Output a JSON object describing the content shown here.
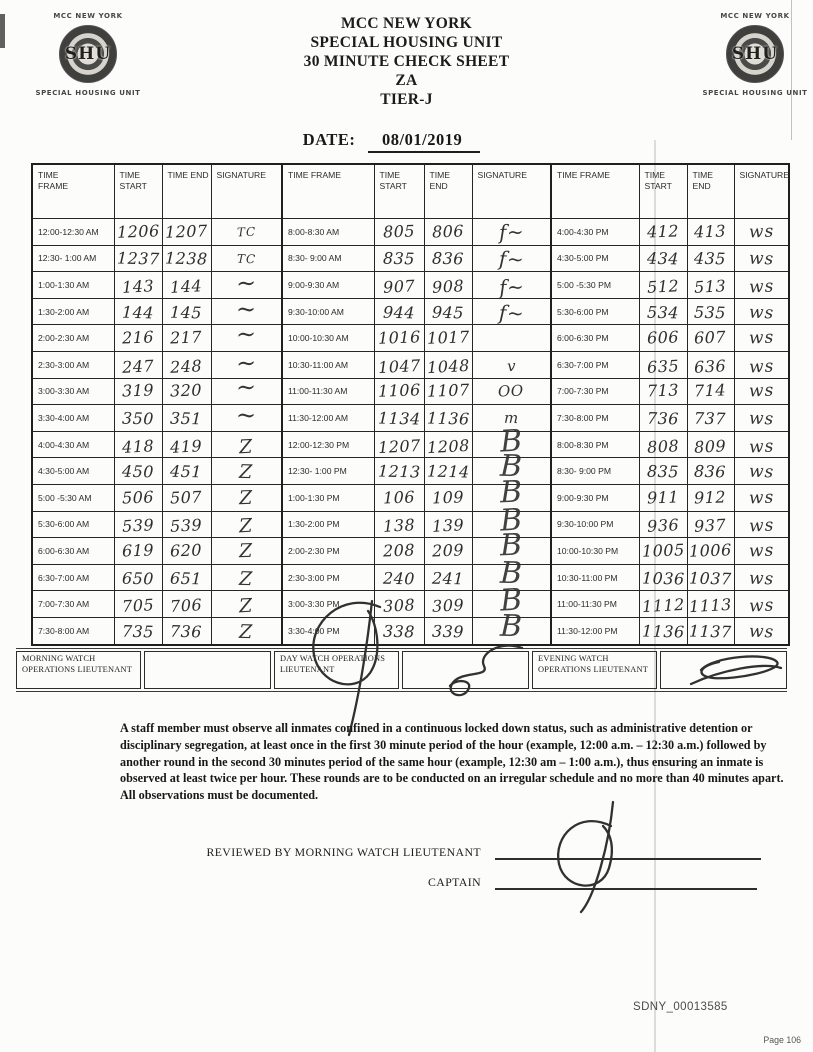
{
  "colors": {
    "paper": "#fcfcfa",
    "print_ink": "#1c1c1c",
    "pen_ink": "#2e2e2e",
    "fold_line": "#b9b6ae"
  },
  "document": {
    "logo": {
      "top": "MCC NEW YORK",
      "seal": "SHU",
      "bottom": "SPECIAL HOUSING UNIT"
    },
    "title_lines": [
      "MCC NEW YORK",
      "SPECIAL HOUSING UNIT",
      "30 MINUTE CHECK SHEET",
      "ZA",
      "TIER-J"
    ],
    "date_label": "DATE:",
    "date_value": "08/01/2019"
  },
  "table": {
    "headers": [
      "TIME FRAME",
      "TIME START",
      "TIME END",
      "SIGNATURE"
    ],
    "groups": [
      {
        "rows": [
          {
            "frame": "12:00-12:30 AM",
            "start": "1206",
            "end": "1207",
            "sig": "TC"
          },
          {
            "frame": "12:30- 1:00 AM",
            "start": "1237",
            "end": "1238",
            "sig": "TC"
          },
          {
            "frame": "1:00-1:30 AM",
            "start": "143",
            "end": "144",
            "sig": "~"
          },
          {
            "frame": "1:30-2:00 AM",
            "start": "144",
            "end": "145",
            "sig": "~"
          },
          {
            "frame": "2:00-2:30 AM",
            "start": "216",
            "end": "217",
            "sig": "~"
          },
          {
            "frame": "2:30-3:00 AM",
            "start": "247",
            "end": "248",
            "sig": "~"
          },
          {
            "frame": "3:00-3:30 AM",
            "start": "319",
            "end": "320",
            "sig": "~"
          },
          {
            "frame": "3:30-4:00 AM",
            "start": "350",
            "end": "351",
            "sig": "~"
          },
          {
            "frame": "4:00-4:30 AM",
            "start": "418",
            "end": "419",
            "sig": "Z"
          },
          {
            "frame": "4:30-5:00 AM",
            "start": "450",
            "end": "451",
            "sig": "Z"
          },
          {
            "frame": "5:00 -5:30 AM",
            "start": "506",
            "end": "507",
            "sig": "Z"
          },
          {
            "frame": "5:30-6:00 AM",
            "start": "539",
            "end": "539",
            "sig": "Z"
          },
          {
            "frame": "6:00-6:30 AM",
            "start": "619",
            "end": "620",
            "sig": "Z"
          },
          {
            "frame": "6:30-7:00 AM",
            "start": "650",
            "end": "651",
            "sig": "Z"
          },
          {
            "frame": "7:00-7:30 AM",
            "start": "705",
            "end": "706",
            "sig": "Z"
          },
          {
            "frame": "7:30-8:00 AM",
            "start": "735",
            "end": "736",
            "sig": "Z"
          }
        ]
      },
      {
        "rows": [
          {
            "frame": "8:00-8:30 AM",
            "start": "805",
            "end": "806",
            "sig": "f~"
          },
          {
            "frame": "8:30- 9:00 AM",
            "start": "835",
            "end": "836",
            "sig": "f~"
          },
          {
            "frame": "9:00-9:30 AM",
            "start": "907",
            "end": "908",
            "sig": "f~"
          },
          {
            "frame": "9:30-10:00 AM",
            "start": "944",
            "end": "945",
            "sig": "f~"
          },
          {
            "frame": "10:00-10:30 AM",
            "start": "1016",
            "end": "1017",
            "sig": ""
          },
          {
            "frame": "10:30-11:00 AM",
            "start": "1047",
            "end": "1048",
            "sig": "v"
          },
          {
            "frame": "11:00-11:30 AM",
            "start": "1106",
            "end": "1107",
            "sig": "OO"
          },
          {
            "frame": "11:30-12:00 AM",
            "start": "1134",
            "end": "1136",
            "sig": "m"
          },
          {
            "frame": "12:00-12:30 PM",
            "start": "1207",
            "end": "1208",
            "sig": "B"
          },
          {
            "frame": "12:30- 1:00 PM",
            "start": "1213",
            "end": "1214",
            "sig": "B"
          },
          {
            "frame": "1:00-1:30 PM",
            "start": "106",
            "end": "109",
            "sig": "B"
          },
          {
            "frame": "1:30-2:00 PM",
            "start": "138",
            "end": "139",
            "sig": "B"
          },
          {
            "frame": "2:00-2:30 PM",
            "start": "208",
            "end": "209",
            "sig": "B"
          },
          {
            "frame": "2:30-3:00 PM",
            "start": "240",
            "end": "241",
            "sig": "B"
          },
          {
            "frame": "3:00-3:30 PM",
            "start": "308",
            "end": "309",
            "sig": "B"
          },
          {
            "frame": "3:30-4:00 PM",
            "start": "338",
            "end": "339",
            "sig": "B"
          }
        ]
      },
      {
        "rows": [
          {
            "frame": "4:00-4:30 PM",
            "start": "412",
            "end": "413",
            "sig": "ws"
          },
          {
            "frame": "4:30-5:00 PM",
            "start": "434",
            "end": "435",
            "sig": "ws"
          },
          {
            "frame": "5:00 -5:30 PM",
            "start": "512",
            "end": "513",
            "sig": "ws"
          },
          {
            "frame": "5:30-6:00 PM",
            "start": "534",
            "end": "535",
            "sig": "ws"
          },
          {
            "frame": "6:00-6:30 PM",
            "start": "606",
            "end": "607",
            "sig": "ws"
          },
          {
            "frame": "6:30-7:00 PM",
            "start": "635",
            "end": "636",
            "sig": "ws"
          },
          {
            "frame": "7:00-7:30 PM",
            "start": "713",
            "end": "714",
            "sig": "ws"
          },
          {
            "frame": "7:30-8:00 PM",
            "start": "736",
            "end": "737",
            "sig": "ws"
          },
          {
            "frame": "8:00-8:30 PM",
            "start": "808",
            "end": "809",
            "sig": "ws"
          },
          {
            "frame": "8:30- 9:00 PM",
            "start": "835",
            "end": "836",
            "sig": "ws"
          },
          {
            "frame": "9:00-9:30 PM",
            "start": "911",
            "end": "912",
            "sig": "ws"
          },
          {
            "frame": "9:30-10:00 PM",
            "start": "936",
            "end": "937",
            "sig": "ws"
          },
          {
            "frame": "10:00-10:30 PM",
            "start": "1005",
            "end": "1006",
            "sig": "ws"
          },
          {
            "frame": "10:30-11:00 PM",
            "start": "1036",
            "end": "1037",
            "sig": "ws"
          },
          {
            "frame": "11:00-11:30 PM",
            "start": "1112",
            "end": "1113",
            "sig": "ws"
          },
          {
            "frame": "11:30-12:00 PM",
            "start": "1136",
            "end": "1137",
            "sig": "ws"
          }
        ]
      }
    ]
  },
  "watch_strip": {
    "morning_label": "MORNING WATCH OPERATIONS LIEUTENANT",
    "day_label": "DAY WATCH OPERATIONS LIEUTENANT",
    "evening_label": "EVENING WATCH OPERATIONS LIEUTENANT"
  },
  "signature_marks": {
    "morning": "handwritten loop",
    "day": "handwritten scribble",
    "evening": "handwritten double oval",
    "reviewed_by": "handwritten loop"
  },
  "notice": "A staff member must observe all inmates confined in a continuous locked down status, such as administrative detention or disciplinary segregation, at least once in the first 30 minute period of the hour (example, 12:00 a.m. – 12:30 a.m.) followed by another round in the second 30 minutes period of the same hour (example, 12:30 am – 1:00 a.m.), thus ensuring an inmate is observed at least twice per hour. These rounds are to be conducted on an irregular schedule and no more than 40 minutes apart. All observations must be documented.",
  "review": {
    "reviewed_by_label": "REVIEWED BY MORNING WATCH LIEUTENANT",
    "captain_label": "CAPTAIN"
  },
  "stamps": {
    "doc_id": "SDNY_00013585",
    "page_label": "Page 106"
  }
}
